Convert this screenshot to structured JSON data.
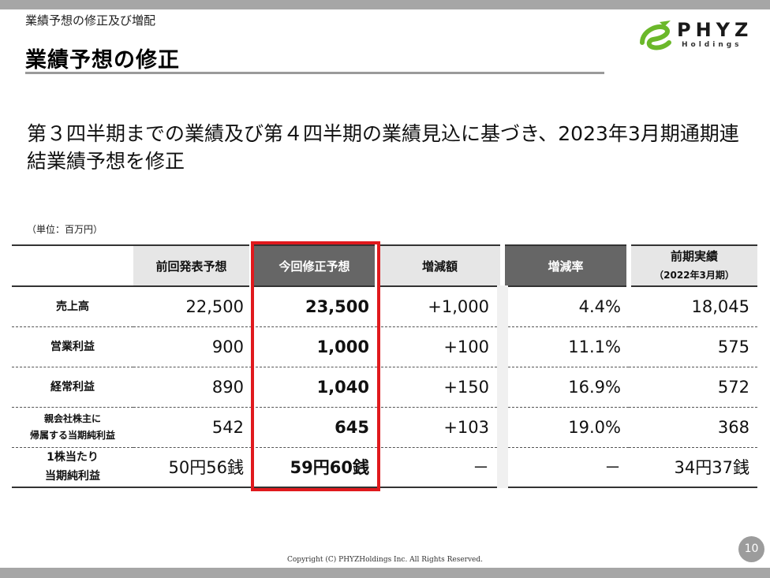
{
  "header": {
    "breadcrumb": "業績予想の修正及び増配",
    "title": "業績予想の修正"
  },
  "logo": {
    "name": "PHYZ",
    "sub": "Holdings",
    "mark_color": "#6bb82a"
  },
  "headline": "第３四半期までの業績及び第４四半期の業績見込に基づき、2023年3月期通期連結業績予想を修正",
  "unit": "（単位：百万円）",
  "table": {
    "columns": {
      "prev_forecast": "前回発表予想",
      "revised_forecast": "今回修正予想",
      "change_amount": "増減額",
      "change_rate": "増減率",
      "prior_actual": "前期実績",
      "prior_actual_sub": "（2022年3月期）"
    },
    "rows": [
      {
        "label": "売上高",
        "label_line2": "",
        "prev": "22,500",
        "revised": "23,500",
        "diff": "+1,000",
        "rate": "4.4%",
        "prior": "18,045"
      },
      {
        "label": "営業利益",
        "label_line2": "",
        "prev": "900",
        "revised": "1,000",
        "diff": "+100",
        "rate": "11.1%",
        "prior": "575"
      },
      {
        "label": "経常利益",
        "label_line2": "",
        "prev": "890",
        "revised": "1,040",
        "diff": "+150",
        "rate": "16.9%",
        "prior": "572"
      },
      {
        "label": "親会社株主に",
        "label_line2": "帰属する当期純利益",
        "prev": "542",
        "revised": "645",
        "diff": "+103",
        "rate": "19.0%",
        "prior": "368"
      },
      {
        "label": "1株当たり",
        "label_line2": "当期純利益",
        "prev": "50円56銭",
        "revised": "59円60銭",
        "diff": "－",
        "rate": "－",
        "prior": "34円37銭"
      }
    ],
    "highlight_color": "#e0191d"
  },
  "footer": {
    "copyright": "Copyright (C) PHYZHoldings Inc. All Rights Reserved.",
    "page": "10"
  }
}
